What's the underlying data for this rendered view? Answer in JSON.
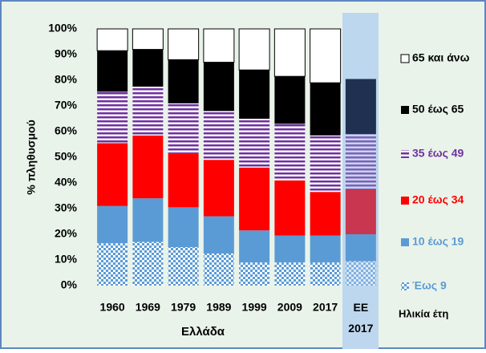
{
  "chart_data": {
    "type": "stacked_bar",
    "categories": [
      "1960",
      "1969",
      "1979",
      "1989",
      "1999",
      "2009",
      "2017",
      "EE 2017"
    ],
    "xlabel": "Ελλάδα",
    "ylabel": "% πληθυσμού",
    "legend_title": "Ηλικία έτη",
    "ylim": [
      0,
      100
    ],
    "yticks": [
      {
        "value": 0,
        "label": "0%"
      },
      {
        "value": 10,
        "label": "10%"
      },
      {
        "value": 20,
        "label": "20%"
      },
      {
        "value": 30,
        "label": "30%"
      },
      {
        "value": 40,
        "label": "40%"
      },
      {
        "value": 50,
        "label": "50%"
      },
      {
        "value": 60,
        "label": "60%"
      },
      {
        "value": 70,
        "label": "70%"
      },
      {
        "value": 80,
        "label": "80%"
      },
      {
        "value": 90,
        "label": "90%"
      },
      {
        "value": 100,
        "label": "100%"
      }
    ],
    "series": [
      {
        "name": "Έως 9",
        "color": "#5b9bd5",
        "highlight_color": "#7fb0e0",
        "values": [
          16.5,
          17,
          15,
          12.5,
          9,
          9,
          9,
          9.5
        ]
      },
      {
        "name": "10 έως 19",
        "color": "#5b9bd5",
        "highlight_color": "#5b9bd5",
        "values": [
          14.5,
          17,
          15.5,
          14.5,
          12.5,
          10.5,
          10.5,
          10.5
        ]
      },
      {
        "name": "20 έως 34",
        "color": "#ff0000",
        "highlight_color": "#c8374f",
        "values": [
          24.5,
          24.5,
          21,
          22,
          24.5,
          21.5,
          17,
          17.5
        ]
      },
      {
        "name": "35 έως 49",
        "color": "#7030a0",
        "highlight_color": "#7a62b8",
        "values": [
          20,
          19,
          19.5,
          19,
          19,
          22,
          22,
          21.5
        ]
      },
      {
        "name": "50 έως 65",
        "color": "#000000",
        "highlight_color": "#1f3050",
        "values": [
          16,
          14.5,
          17,
          19,
          19,
          18.5,
          20.5,
          21.5
        ]
      },
      {
        "name": "65 και άνω",
        "color": "#ffffff",
        "highlight_color": "#bdd7ee",
        "values": [
          8.5,
          8,
          12,
          13,
          16,
          18.5,
          21,
          19.5
        ]
      }
    ]
  }
}
